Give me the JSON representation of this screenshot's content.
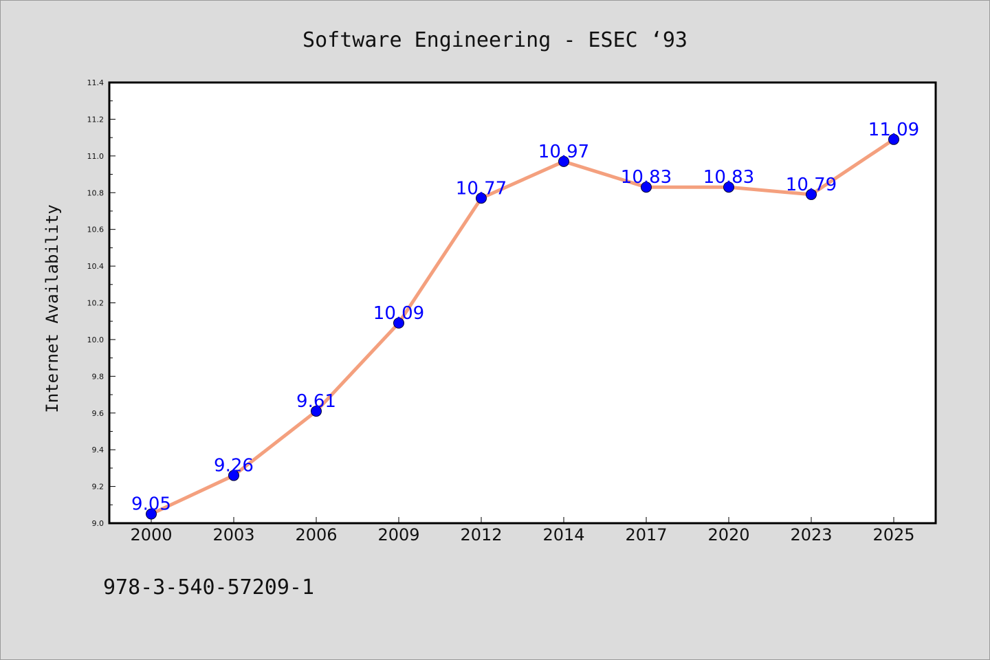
{
  "chart_data": {
    "type": "line",
    "title": "Software Engineering - ESEC  ‘93",
    "xlabel": "",
    "ylabel": "Internet Availability",
    "categories": [
      "2000",
      "2003",
      "2006",
      "2009",
      "2012",
      "2014",
      "2017",
      "2020",
      "2023",
      "2025"
    ],
    "series": [
      {
        "values": [
          9.05,
          9.26,
          9.61,
          10.09,
          10.77,
          10.97,
          10.83,
          10.83,
          10.79,
          11.09
        ],
        "line_color": "#f4a07e",
        "marker_color": "#0000ff"
      }
    ],
    "data_labels": [
      "9.05",
      "9.26",
      "9.61",
      "10.09",
      "10.77",
      "10.97",
      "10.83",
      "10.83",
      "10.79",
      "11.09"
    ],
    "ylim": [
      9.0,
      11.4
    ],
    "yticks": [
      "9.0",
      "9.2",
      "9.4",
      "9.6",
      "9.8",
      "10.0",
      "10.2",
      "10.4",
      "10.6",
      "10.8",
      "11.0",
      "11.2",
      "11.4"
    ],
    "grid": false,
    "legend": "none"
  },
  "footer_text": "978-3-540-57209-1"
}
